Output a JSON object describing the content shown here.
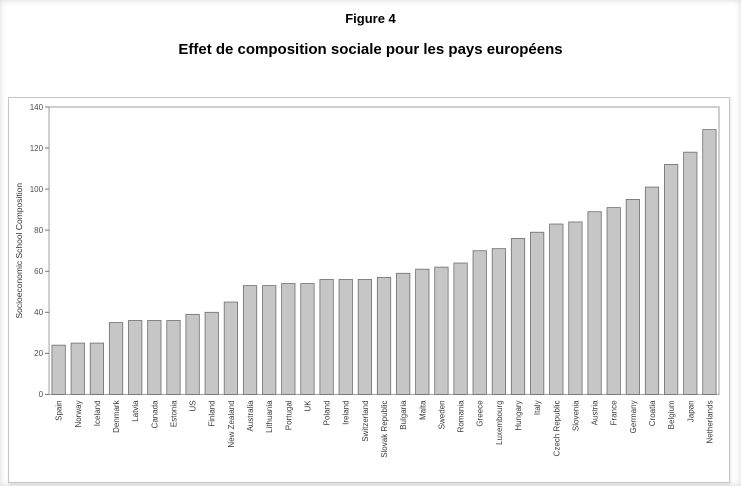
{
  "page": {
    "figure_label": "Figure 4",
    "title": "Effet de composition sociale pour les pays européens"
  },
  "chart_data": {
    "type": "bar",
    "title": "Effet de composition sociale pour les pays européens",
    "xlabel": "",
    "ylabel": "Socioeconomic School Composition",
    "ylim": [
      0,
      140
    ],
    "yticks": [
      0,
      20,
      40,
      60,
      80,
      100,
      120,
      140
    ],
    "grid": false,
    "legend": "none",
    "bar_color": "#c6c6c6",
    "bar_border": "#6e6e6e",
    "axis_color": "#a0a0a0",
    "categories": [
      "Spain",
      "Norway",
      "Iceland",
      "Denmark",
      "Latvia",
      "Canada",
      "Estonia",
      "US",
      "Finland",
      "New Zealand",
      "Australia",
      "Lithuania",
      "Portugal",
      "UK",
      "Poland",
      "Ireland",
      "Switzerland",
      "Slovak Republic",
      "Bulgaria",
      "Malta",
      "Sweden",
      "Romania",
      "Greece",
      "Luxembourg",
      "Hungary",
      "Italy",
      "Czech Republic",
      "Slovenia",
      "Austria",
      "France",
      "Germany",
      "Croatia",
      "Belgium",
      "Japan",
      "Netherlands"
    ],
    "values": [
      24,
      25,
      25,
      35,
      36,
      36,
      36,
      39,
      40,
      45,
      53,
      53,
      54,
      54,
      56,
      56,
      56,
      57,
      59,
      61,
      62,
      64,
      70,
      71,
      76,
      79,
      83,
      84,
      89,
      91,
      95,
      101,
      112,
      118,
      129
    ]
  }
}
